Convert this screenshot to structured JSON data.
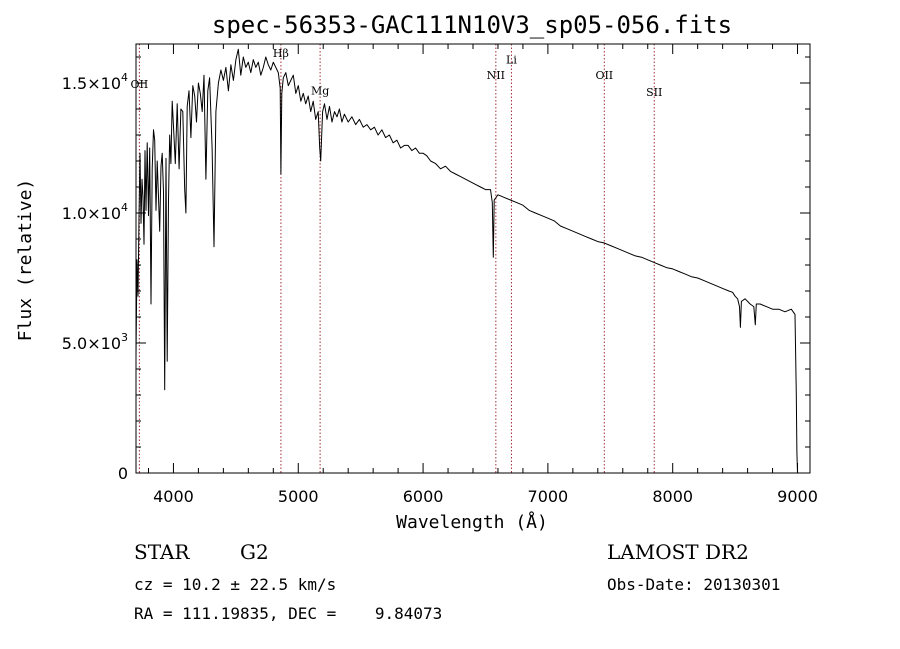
{
  "chart_data": {
    "type": "line",
    "title": "spec-56353-GAC111N10V3_sp05-056.fits",
    "xlabel": "Wavelength (Å)",
    "ylabel": "Flux (relative)",
    "xlim": [
      3700,
      9100
    ],
    "ylim": [
      0,
      16500
    ],
    "x_ticks": [
      4000,
      5000,
      6000,
      7000,
      8000,
      9000
    ],
    "x_tick_labels": [
      "4000",
      "5000",
      "6000",
      "7000",
      "8000",
      "9000"
    ],
    "y_ticks": [
      0,
      5000,
      10000,
      15000
    ],
    "y_tick_labels": [
      {
        "mantissa": "0",
        "exponent": ""
      },
      {
        "mantissa": "5.0×10",
        "exponent": "3"
      },
      {
        "mantissa": "1.0×10",
        "exponent": "4"
      },
      {
        "mantissa": "1.5×10",
        "exponent": "4"
      }
    ],
    "line_color": "#000000",
    "marker_color": "#a0303a",
    "lines": [
      {
        "label": "OII",
        "x": 3727,
        "label_flux": 14800
      },
      {
        "label": "Hβ",
        "x": 4861,
        "label_flux": 16000
      },
      {
        "label": "Mg",
        "x": 5175,
        "label_flux": 14550
      },
      {
        "label": "NII",
        "x": 6583,
        "label_flux": 15150
      },
      {
        "label": "Li",
        "x": 6708,
        "label_flux": 15750
      },
      {
        "label": "OII",
        "x": 7452,
        "label_flux": 15150
      },
      {
        "label": "SII",
        "x": 7852,
        "label_flux": 14500
      }
    ],
    "series": [
      {
        "points": [
          [
            3700,
            4500
          ],
          [
            3708,
            8200
          ],
          [
            3716,
            6800
          ],
          [
            3724,
            9800
          ],
          [
            3732,
            12300
          ],
          [
            3740,
            9600
          ],
          [
            3748,
            11300
          ],
          [
            3756,
            10600
          ],
          [
            3764,
            8800
          ],
          [
            3772,
            12400
          ],
          [
            3780,
            10100
          ],
          [
            3790,
            12700
          ],
          [
            3800,
            9900
          ],
          [
            3810,
            12500
          ],
          [
            3820,
            6500
          ],
          [
            3830,
            11700
          ],
          [
            3840,
            13200
          ],
          [
            3850,
            12800
          ],
          [
            3860,
            10100
          ],
          [
            3870,
            12000
          ],
          [
            3880,
            10600
          ],
          [
            3890,
            9300
          ],
          [
            3900,
            11800
          ],
          [
            3910,
            12300
          ],
          [
            3920,
            10800
          ],
          [
            3930,
            3200
          ],
          [
            3940,
            12100
          ],
          [
            3950,
            4300
          ],
          [
            3960,
            10500
          ],
          [
            3970,
            13000
          ],
          [
            3980,
            11900
          ],
          [
            3990,
            14300
          ],
          [
            4000,
            13400
          ],
          [
            4015,
            11900
          ],
          [
            4030,
            14200
          ],
          [
            4045,
            11700
          ],
          [
            4060,
            14000
          ],
          [
            4075,
            13900
          ],
          [
            4090,
            10900
          ],
          [
            4100,
            10000
          ],
          [
            4110,
            14100
          ],
          [
            4125,
            14700
          ],
          [
            4140,
            12900
          ],
          [
            4155,
            14900
          ],
          [
            4170,
            14500
          ],
          [
            4185,
            13500
          ],
          [
            4200,
            15000
          ],
          [
            4215,
            14600
          ],
          [
            4230,
            13900
          ],
          [
            4245,
            15300
          ],
          [
            4260,
            11300
          ],
          [
            4275,
            14700
          ],
          [
            4290,
            15200
          ],
          [
            4310,
            12500
          ],
          [
            4325,
            8700
          ],
          [
            4340,
            13900
          ],
          [
            4360,
            15000
          ],
          [
            4380,
            15500
          ],
          [
            4400,
            15100
          ],
          [
            4420,
            15600
          ],
          [
            4440,
            14700
          ],
          [
            4460,
            15700
          ],
          [
            4480,
            15100
          ],
          [
            4500,
            15900
          ],
          [
            4520,
            16300
          ],
          [
            4540,
            15300
          ],
          [
            4560,
            16000
          ],
          [
            4580,
            15600
          ],
          [
            4600,
            15800
          ],
          [
            4620,
            15400
          ],
          [
            4640,
            15900
          ],
          [
            4660,
            15600
          ],
          [
            4680,
            15800
          ],
          [
            4700,
            15300
          ],
          [
            4720,
            15600
          ],
          [
            4740,
            16000
          ],
          [
            4760,
            15700
          ],
          [
            4780,
            15500
          ],
          [
            4800,
            15800
          ],
          [
            4820,
            15600
          ],
          [
            4840,
            15400
          ],
          [
            4855,
            14800
          ],
          [
            4861,
            11500
          ],
          [
            4868,
            14600
          ],
          [
            4880,
            15200
          ],
          [
            4900,
            15400
          ],
          [
            4920,
            14900
          ],
          [
            4940,
            15100
          ],
          [
            4960,
            15300
          ],
          [
            4980,
            14600
          ],
          [
            5000,
            14900
          ],
          [
            5020,
            14300
          ],
          [
            5040,
            14600
          ],
          [
            5060,
            14200
          ],
          [
            5080,
            14500
          ],
          [
            5100,
            13900
          ],
          [
            5120,
            14300
          ],
          [
            5140,
            13600
          ],
          [
            5160,
            13900
          ],
          [
            5172,
            12500
          ],
          [
            5180,
            12000
          ],
          [
            5195,
            13900
          ],
          [
            5210,
            14200
          ],
          [
            5230,
            13600
          ],
          [
            5250,
            14100
          ],
          [
            5270,
            13500
          ],
          [
            5290,
            13900
          ],
          [
            5310,
            13700
          ],
          [
            5330,
            14000
          ],
          [
            5350,
            13500
          ],
          [
            5370,
            13800
          ],
          [
            5400,
            13500
          ],
          [
            5430,
            13700
          ],
          [
            5460,
            13400
          ],
          [
            5490,
            13600
          ],
          [
            5520,
            13300
          ],
          [
            5550,
            13400
          ],
          [
            5580,
            13200
          ],
          [
            5610,
            13300
          ],
          [
            5640,
            13000
          ],
          [
            5670,
            13200
          ],
          [
            5700,
            12900
          ],
          [
            5730,
            13000
          ],
          [
            5760,
            12700
          ],
          [
            5790,
            12800
          ],
          [
            5820,
            12500
          ],
          [
            5850,
            12600
          ],
          [
            5880,
            12600
          ],
          [
            5910,
            12400
          ],
          [
            5940,
            12500
          ],
          [
            5970,
            12300
          ],
          [
            6000,
            12300
          ],
          [
            6030,
            12200
          ],
          [
            6060,
            12000
          ],
          [
            6100,
            11900
          ],
          [
            6140,
            11700
          ],
          [
            6180,
            11800
          ],
          [
            6220,
            11600
          ],
          [
            6260,
            11500
          ],
          [
            6300,
            11400
          ],
          [
            6340,
            11300
          ],
          [
            6380,
            11200
          ],
          [
            6420,
            11100
          ],
          [
            6460,
            11000
          ],
          [
            6500,
            10900
          ],
          [
            6540,
            10900
          ],
          [
            6555,
            10400
          ],
          [
            6563,
            8300
          ],
          [
            6570,
            10500
          ],
          [
            6600,
            10700
          ],
          [
            6650,
            10600
          ],
          [
            6700,
            10500
          ],
          [
            6750,
            10400
          ],
          [
            6800,
            10300
          ],
          [
            6850,
            10100
          ],
          [
            6900,
            10000
          ],
          [
            6950,
            9900
          ],
          [
            7000,
            9800
          ],
          [
            7050,
            9700
          ],
          [
            7100,
            9500
          ],
          [
            7150,
            9400
          ],
          [
            7200,
            9300
          ],
          [
            7250,
            9200
          ],
          [
            7300,
            9100
          ],
          [
            7350,
            9000
          ],
          [
            7400,
            8900
          ],
          [
            7450,
            8850
          ],
          [
            7500,
            8750
          ],
          [
            7550,
            8650
          ],
          [
            7600,
            8550
          ],
          [
            7650,
            8450
          ],
          [
            7700,
            8350
          ],
          [
            7750,
            8300
          ],
          [
            7800,
            8200
          ],
          [
            7850,
            8100
          ],
          [
            7900,
            8000
          ],
          [
            7950,
            7900
          ],
          [
            8000,
            7850
          ],
          [
            8050,
            7750
          ],
          [
            8100,
            7650
          ],
          [
            8150,
            7550
          ],
          [
            8200,
            7500
          ],
          [
            8250,
            7400
          ],
          [
            8300,
            7300
          ],
          [
            8350,
            7200
          ],
          [
            8400,
            7100
          ],
          [
            8450,
            7000
          ],
          [
            8480,
            6950
          ],
          [
            8500,
            6800
          ],
          [
            8520,
            6700
          ],
          [
            8535,
            6400
          ],
          [
            8542,
            5600
          ],
          [
            8550,
            6600
          ],
          [
            8580,
            6700
          ],
          [
            8620,
            6500
          ],
          [
            8650,
            6400
          ],
          [
            8662,
            5700
          ],
          [
            8670,
            6500
          ],
          [
            8700,
            6500
          ],
          [
            8750,
            6400
          ],
          [
            8800,
            6300
          ],
          [
            8850,
            6300
          ],
          [
            8900,
            6200
          ],
          [
            8950,
            6300
          ],
          [
            8980,
            6100
          ],
          [
            8990,
            3000
          ],
          [
            8995,
            800
          ],
          [
            9000,
            0
          ]
        ]
      }
    ]
  },
  "info": {
    "object_type": "STAR",
    "subclass": "G2",
    "redshift": "cz = 10.2 ± 22.5 km/s",
    "coords": "RA = 111.19835, DEC =    9.84073",
    "survey": "LAMOST DR2",
    "obs_date": "Obs-Date: 20130301"
  }
}
